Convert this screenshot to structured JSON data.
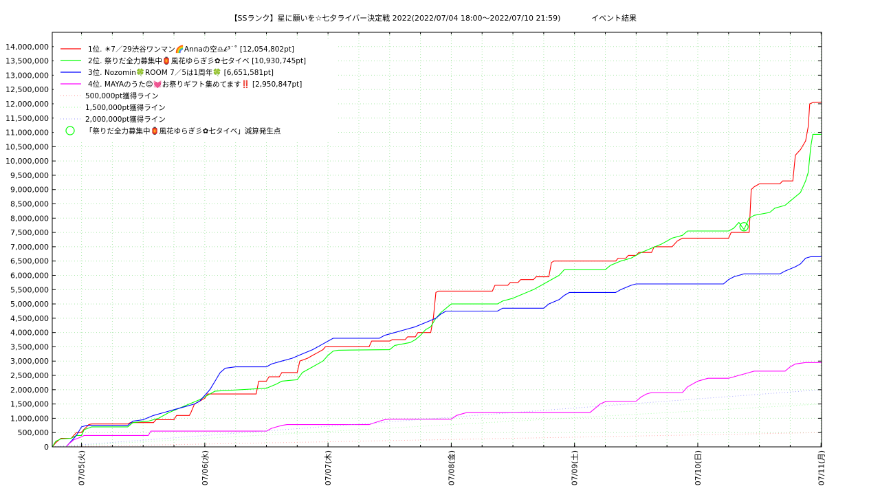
{
  "chart_data": {
    "type": "line",
    "title": "【SSランク】星に願いを☆七夕ライバー決定戦 2022(2022/07/04 18:00～2022/07/10 21:59)",
    "subtitle": "イベント結果",
    "xlabel": "",
    "ylabel": "",
    "x_range_hours": [
      -5.7,
      144.1
    ],
    "ylim": [
      0,
      14500000
    ],
    "x_tick_labels": [
      "07/05(火)",
      "07/06(水)",
      "07/07(木)",
      "07/08(金)",
      "07/09(土)",
      "07/10(日)",
      "07/11(月)"
    ],
    "x_tick_hours": [
      0,
      24,
      48,
      72,
      96,
      120,
      144
    ],
    "y_tick_values": [
      0,
      500000,
      1000000,
      1500000,
      2000000,
      2500000,
      3000000,
      3500000,
      4000000,
      4500000,
      5000000,
      5500000,
      6000000,
      6500000,
      7000000,
      7500000,
      8000000,
      8500000,
      9000000,
      9500000,
      10000000,
      10500000,
      11000000,
      11500000,
      12000000,
      12500000,
      13000000,
      13500000,
      14000000
    ],
    "y_tick_labels": [
      "0",
      "500,000",
      "1,000,000",
      "1,500,000",
      "2,000,000",
      "2,500,000",
      "3,000,000",
      "3,500,000",
      "4,000,000",
      "4,500,000",
      "5,000,000",
      "5,500,000",
      "6,000,000",
      "6,500,000",
      "7,000,000",
      "7,500,000",
      "8,000,000",
      "8,500,000",
      "9,000,000",
      "9,500,000",
      "10,000,000",
      "10,500,000",
      "11,000,000",
      "11,500,000",
      "12,000,000",
      "12,500,000",
      "13,000,000",
      "13,500,000",
      "14,000,000"
    ],
    "grid": true,
    "legend_position": "top-left",
    "series": [
      {
        "name": "1位. ☀7／29渋谷ワンマン🌈Annaの空♎𝓀³˙˚ [12,054,802pt]",
        "color": "#ff0000",
        "points": [
          [
            -5.7,
            0
          ],
          [
            -5,
            150000
          ],
          [
            -4,
            300000
          ],
          [
            -2,
            300000
          ],
          [
            -1,
            500000
          ],
          [
            0,
            500000
          ],
          [
            0.4,
            600000
          ],
          [
            1,
            700000
          ],
          [
            1.4,
            780000
          ],
          [
            2,
            800000
          ],
          [
            9,
            800000
          ],
          [
            9.5,
            850000
          ],
          [
            14,
            850000
          ],
          [
            14.5,
            950000
          ],
          [
            18,
            950000
          ],
          [
            18.5,
            1100000
          ],
          [
            21,
            1100000
          ],
          [
            21.3,
            1200000
          ],
          [
            22,
            1500000
          ],
          [
            23,
            1600000
          ],
          [
            24,
            1700000
          ],
          [
            24.5,
            1850000
          ],
          [
            34,
            1850000
          ],
          [
            34.5,
            2300000
          ],
          [
            36,
            2300000
          ],
          [
            36.5,
            2450000
          ],
          [
            38.5,
            2450000
          ],
          [
            39,
            2600000
          ],
          [
            42,
            2600000
          ],
          [
            42.5,
            3000000
          ],
          [
            44,
            3100000
          ],
          [
            45,
            3200000
          ],
          [
            46,
            3300000
          ],
          [
            47,
            3400000
          ],
          [
            47.5,
            3500000
          ],
          [
            52,
            3500000
          ],
          [
            56,
            3500000
          ],
          [
            56.5,
            3700000
          ],
          [
            60,
            3700000
          ],
          [
            60.5,
            3750000
          ],
          [
            63,
            3750000
          ],
          [
            63.5,
            3850000
          ],
          [
            65,
            3850000
          ],
          [
            65.5,
            4000000
          ],
          [
            68,
            4000000
          ],
          [
            68.5,
            4500000
          ],
          [
            69,
            5400000
          ],
          [
            69.5,
            5450000
          ],
          [
            80,
            5450000
          ],
          [
            80.5,
            5650000
          ],
          [
            83,
            5650000
          ],
          [
            83.5,
            5750000
          ],
          [
            85,
            5750000
          ],
          [
            85.5,
            5850000
          ],
          [
            88,
            5850000
          ],
          [
            88.5,
            5950000
          ],
          [
            91,
            5950000
          ],
          [
            91.5,
            6450000
          ],
          [
            92,
            6500000
          ],
          [
            104,
            6500000
          ],
          [
            104.5,
            6600000
          ],
          [
            106,
            6600000
          ],
          [
            106.5,
            6700000
          ],
          [
            108,
            6700000
          ],
          [
            108.5,
            6800000
          ],
          [
            111,
            6800000
          ],
          [
            111.5,
            7000000
          ],
          [
            115,
            7000000
          ],
          [
            116,
            7200000
          ],
          [
            117,
            7300000
          ],
          [
            122,
            7300000
          ],
          [
            126,
            7300000
          ],
          [
            126.5,
            7500000
          ],
          [
            130,
            7500000
          ],
          [
            130.4,
            9000000
          ],
          [
            131,
            9100000
          ],
          [
            132,
            9200000
          ],
          [
            136,
            9200000
          ],
          [
            136.5,
            9300000
          ],
          [
            138.5,
            9300000
          ],
          [
            139,
            10200000
          ],
          [
            140,
            10400000
          ],
          [
            141,
            10700000
          ],
          [
            141.5,
            11200000
          ],
          [
            141.8,
            12000000
          ],
          [
            142.5,
            12050000
          ],
          [
            144.1,
            12054802
          ]
        ]
      },
      {
        "name": "2位. 祭りだ全力募集中🏮風花ゆらぎ彡✿七タイベ [10,930,745pt]",
        "color": "#00ff00",
        "points": [
          [
            -5.7,
            0
          ],
          [
            -5,
            200000
          ],
          [
            -4,
            280000
          ],
          [
            -2,
            300000
          ],
          [
            -1,
            400000
          ],
          [
            0,
            400000
          ],
          [
            0.5,
            600000
          ],
          [
            2,
            700000
          ],
          [
            9,
            700000
          ],
          [
            10,
            850000
          ],
          [
            13,
            900000
          ],
          [
            15,
            1000000
          ],
          [
            17,
            1200000
          ],
          [
            19,
            1350000
          ],
          [
            21,
            1500000
          ],
          [
            23,
            1650000
          ],
          [
            25,
            1850000
          ],
          [
            26,
            1950000
          ],
          [
            36,
            2050000
          ],
          [
            38,
            2200000
          ],
          [
            39,
            2300000
          ],
          [
            42,
            2350000
          ],
          [
            43,
            2600000
          ],
          [
            45,
            2800000
          ],
          [
            47,
            3000000
          ],
          [
            48,
            3200000
          ],
          [
            49,
            3350000
          ],
          [
            50,
            3380000
          ],
          [
            60,
            3400000
          ],
          [
            61,
            3550000
          ],
          [
            64,
            3650000
          ],
          [
            65,
            3750000
          ],
          [
            66,
            3900000
          ],
          [
            67,
            4100000
          ],
          [
            68,
            4200000
          ],
          [
            69,
            4500000
          ],
          [
            70,
            4700000
          ],
          [
            71,
            4850000
          ],
          [
            72,
            5000000
          ],
          [
            81,
            5000000
          ],
          [
            82,
            5100000
          ],
          [
            84,
            5200000
          ],
          [
            86,
            5350000
          ],
          [
            88,
            5500000
          ],
          [
            90,
            5700000
          ],
          [
            92,
            5900000
          ],
          [
            93,
            6000000
          ],
          [
            94,
            6200000
          ],
          [
            102,
            6200000
          ],
          [
            103,
            6350000
          ],
          [
            105,
            6500000
          ],
          [
            107,
            6600000
          ],
          [
            109,
            6800000
          ],
          [
            111,
            6950000
          ],
          [
            113,
            7100000
          ],
          [
            115,
            7300000
          ],
          [
            117,
            7400000
          ],
          [
            118,
            7550000
          ],
          [
            126,
            7550000
          ],
          [
            127,
            7650000
          ],
          [
            128,
            7850000
          ],
          [
            129,
            7600000
          ],
          [
            130,
            8000000
          ],
          [
            131,
            8100000
          ],
          [
            134,
            8200000
          ],
          [
            135,
            8350000
          ],
          [
            137,
            8450000
          ],
          [
            138,
            8600000
          ],
          [
            140,
            8900000
          ],
          [
            141,
            9300000
          ],
          [
            141.5,
            9600000
          ],
          [
            142,
            10500000
          ],
          [
            142.4,
            10930745
          ],
          [
            144.1,
            10930745
          ]
        ]
      },
      {
        "name": "3位. Nozomin🍀ROOM 7／5は1周年🍀 [6,651,581pt]",
        "color": "#0000ff",
        "points": [
          [
            -3,
            0
          ],
          [
            -2.5,
            100000
          ],
          [
            -2,
            200000
          ],
          [
            -1,
            400000
          ],
          [
            0,
            700000
          ],
          [
            1,
            750000
          ],
          [
            9,
            750000
          ],
          [
            10,
            900000
          ],
          [
            12,
            950000
          ],
          [
            14,
            1100000
          ],
          [
            16,
            1200000
          ],
          [
            18,
            1300000
          ],
          [
            20,
            1400000
          ],
          [
            22,
            1500000
          ],
          [
            23,
            1600000
          ],
          [
            25,
            2000000
          ],
          [
            26,
            2300000
          ],
          [
            27,
            2600000
          ],
          [
            28,
            2750000
          ],
          [
            30,
            2800000
          ],
          [
            36,
            2800000
          ],
          [
            37,
            2900000
          ],
          [
            39,
            3000000
          ],
          [
            41,
            3100000
          ],
          [
            43,
            3250000
          ],
          [
            45,
            3400000
          ],
          [
            47,
            3600000
          ],
          [
            49,
            3800000
          ],
          [
            58,
            3800000
          ],
          [
            59,
            3900000
          ],
          [
            61,
            4000000
          ],
          [
            63,
            4100000
          ],
          [
            65,
            4200000
          ],
          [
            67,
            4350000
          ],
          [
            69,
            4500000
          ],
          [
            70,
            4650000
          ],
          [
            71,
            4750000
          ],
          [
            81,
            4750000
          ],
          [
            82,
            4850000
          ],
          [
            90,
            4850000
          ],
          [
            91,
            5000000
          ],
          [
            93,
            5150000
          ],
          [
            94,
            5300000
          ],
          [
            95,
            5400000
          ],
          [
            104,
            5400000
          ],
          [
            105,
            5500000
          ],
          [
            107,
            5650000
          ],
          [
            108,
            5700000
          ],
          [
            122,
            5700000
          ],
          [
            125,
            5700000
          ],
          [
            126,
            5850000
          ],
          [
            127,
            5950000
          ],
          [
            128,
            6000000
          ],
          [
            129,
            6050000
          ],
          [
            136,
            6050000
          ],
          [
            137,
            6150000
          ],
          [
            139,
            6300000
          ],
          [
            140,
            6400000
          ],
          [
            141,
            6600000
          ],
          [
            142,
            6651581
          ],
          [
            144.1,
            6651581
          ]
        ]
      },
      {
        "name": "4位. MAYAのうた😊💓お祭りギフト集めてます‼️ [2,950,847pt]",
        "color": "#ff00ff",
        "points": [
          [
            -3,
            0
          ],
          [
            -2.5,
            100000
          ],
          [
            -1.5,
            250000
          ],
          [
            0,
            350000
          ],
          [
            0.5,
            400000
          ],
          [
            13,
            400000
          ],
          [
            13.5,
            550000
          ],
          [
            36,
            550000
          ],
          [
            37,
            650000
          ],
          [
            38,
            700000
          ],
          [
            39,
            750000
          ],
          [
            40,
            780000
          ],
          [
            56,
            780000
          ],
          [
            58,
            900000
          ],
          [
            59,
            950000
          ],
          [
            60,
            970000
          ],
          [
            72,
            970000
          ],
          [
            73,
            1100000
          ],
          [
            74,
            1150000
          ],
          [
            75,
            1200000
          ],
          [
            76,
            1200000
          ],
          [
            99,
            1200000
          ],
          [
            100,
            1350000
          ],
          [
            101,
            1500000
          ],
          [
            102,
            1580000
          ],
          [
            103,
            1600000
          ],
          [
            108,
            1600000
          ],
          [
            109,
            1750000
          ],
          [
            110,
            1850000
          ],
          [
            111,
            1900000
          ],
          [
            117,
            1900000
          ],
          [
            118,
            2100000
          ],
          [
            120,
            2300000
          ],
          [
            121,
            2350000
          ],
          [
            122,
            2400000
          ],
          [
            126,
            2400000
          ],
          [
            127,
            2450000
          ],
          [
            128,
            2500000
          ],
          [
            129,
            2550000
          ],
          [
            130,
            2600000
          ],
          [
            131,
            2650000
          ],
          [
            132,
            2650000
          ],
          [
            137,
            2650000
          ],
          [
            138,
            2800000
          ],
          [
            139,
            2900000
          ],
          [
            141,
            2950847
          ],
          [
            144.1,
            2950847
          ]
        ]
      },
      {
        "name": "500,000pt獲得ライン",
        "color": "#ffaaaa",
        "dotted": true,
        "points": [
          [
            -5.7,
            0
          ],
          [
            144.1,
            500000
          ]
        ]
      },
      {
        "name": "1,500,000pt獲得ライン",
        "color": "#aaffaa",
        "dotted": true,
        "points": [
          [
            -5.7,
            0
          ],
          [
            144.1,
            1500000
          ]
        ]
      },
      {
        "name": "2,000,000pt獲得ライン",
        "color": "#aaaaff",
        "dotted": true,
        "points": [
          [
            -5.7,
            0
          ],
          [
            144.1,
            2000000
          ]
        ]
      }
    ],
    "markers": [
      {
        "name": "「祭りだ全力募集中🏮風花ゆらぎ彡✿七タイベ」減算発生点",
        "color": "#00ff00",
        "points": [
          [
            129,
            7700000
          ]
        ]
      }
    ]
  }
}
